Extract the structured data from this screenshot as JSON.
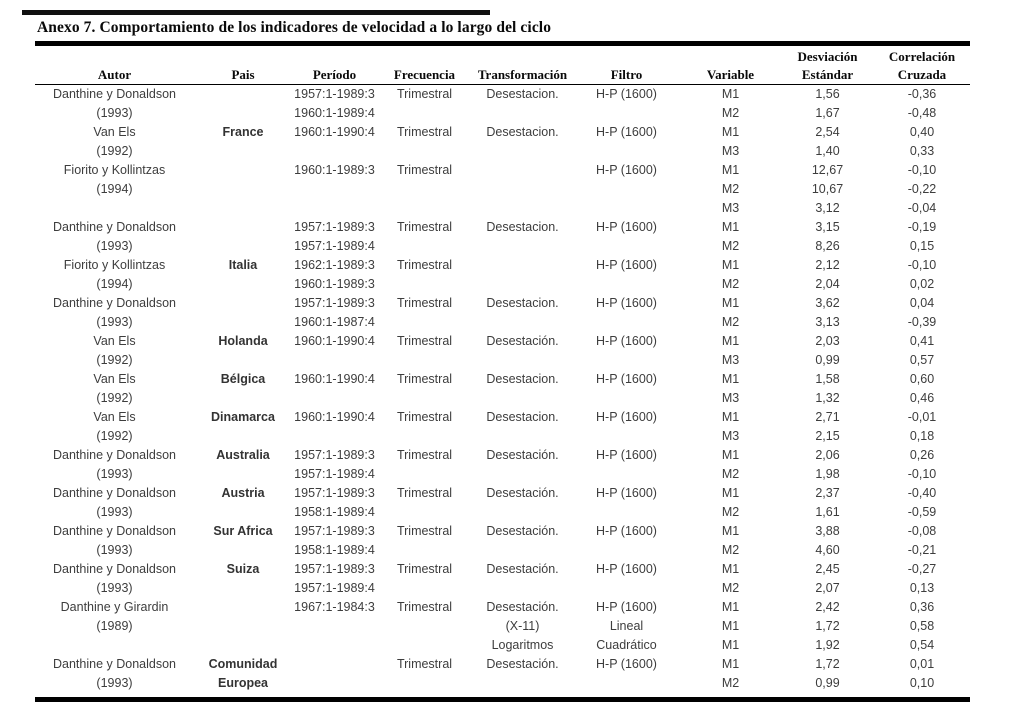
{
  "title": "Anexo 7. Comportamiento de los indicadores de velocidad a lo largo del ciclo",
  "colors": {
    "rule": "#000000",
    "title_text": "#0a0a0a",
    "body_text": "#3d3d3d",
    "background": "#ffffff"
  },
  "table": {
    "header_top": [
      "",
      "",
      "",
      "",
      "",
      "",
      "",
      "Desviación",
      "Correlación"
    ],
    "columns": [
      "Autor",
      "Pais",
      "Período",
      "Frecuencia",
      "Transformación",
      "Filtro",
      "Variable",
      "Estándar",
      "Cruzada"
    ],
    "rows": [
      [
        "Danthine y Donaldson",
        "",
        "1957:1-1989:3",
        "Trimestral",
        "Desestacion.",
        "H-P (1600)",
        "M1",
        "1,56",
        "-0,36"
      ],
      [
        "(1993)",
        "",
        "1960:1-1989:4",
        "",
        "",
        "",
        "M2",
        "1,67",
        "-0,48"
      ],
      [
        "Van Els",
        "France",
        "1960:1-1990:4",
        "Trimestral",
        "Desestacion.",
        "H-P (1600)",
        "M1",
        "2,54",
        "0,40"
      ],
      [
        "(1992)",
        "",
        "",
        "",
        "",
        "",
        "M3",
        "1,40",
        "0,33"
      ],
      [
        "Fiorito y Kollintzas",
        "",
        "1960:1-1989:3",
        "Trimestral",
        "",
        "H-P (1600)",
        "M1",
        "12,67",
        "-0,10"
      ],
      [
        "(1994)",
        "",
        "",
        "",
        "",
        "",
        "M2",
        "10,67",
        "-0,22"
      ],
      [
        "",
        "",
        "",
        "",
        "",
        "",
        "M3",
        "3,12",
        "-0,04"
      ],
      [
        "Danthine y Donaldson",
        "",
        "1957:1-1989:3",
        "Trimestral",
        "Desestacion.",
        "H-P (1600)",
        "M1",
        "3,15",
        "-0,19"
      ],
      [
        "(1993)",
        "",
        "1957:1-1989:4",
        "",
        "",
        "",
        "M2",
        "8,26",
        "0,15"
      ],
      [
        "Fiorito y Kollintzas",
        "Italia",
        "1962:1-1989:3",
        "Trimestral",
        "",
        "H-P (1600)",
        "M1",
        "2,12",
        "-0,10"
      ],
      [
        "(1994)",
        "",
        "1960:1-1989:3",
        "",
        "",
        "",
        "M2",
        "2,04",
        "0,02"
      ],
      [
        "Danthine y Donaldson",
        "",
        "1957:1-1989:3",
        "Trimestral",
        "Desestacion.",
        "H-P (1600)",
        "M1",
        "3,62",
        "0,04"
      ],
      [
        "(1993)",
        "",
        "1960:1-1987:4",
        "",
        "",
        "",
        "M2",
        "3,13",
        "-0,39"
      ],
      [
        "Van Els",
        "Holanda",
        "1960:1-1990:4",
        "Trimestral",
        "Desestación.",
        "H-P (1600)",
        "M1",
        "2,03",
        "0,41"
      ],
      [
        "(1992)",
        "",
        "",
        "",
        "",
        "",
        "M3",
        "0,99",
        "0,57"
      ],
      [
        "Van Els",
        "Bélgica",
        "1960:1-1990:4",
        "Trimestral",
        "Desestacion.",
        "H-P (1600)",
        "M1",
        "1,58",
        "0,60"
      ],
      [
        "(1992)",
        "",
        "",
        "",
        "",
        "",
        "M3",
        "1,32",
        "0,46"
      ],
      [
        "Van Els",
        "Dinamarca",
        "1960:1-1990:4",
        "Trimestral",
        "Desestacion.",
        "H-P (1600)",
        "M1",
        "2,71",
        "-0,01"
      ],
      [
        "(1992)",
        "",
        "",
        "",
        "",
        "",
        "M3",
        "2,15",
        "0,18"
      ],
      [
        "Danthine y Donaldson",
        "Australia",
        "1957:1-1989:3",
        "Trimestral",
        "Desestación.",
        "H-P (1600)",
        "M1",
        "2,06",
        "0,26"
      ],
      [
        "(1993)",
        "",
        "1957:1-1989:4",
        "",
        "",
        "",
        "M2",
        "1,98",
        "-0,10"
      ],
      [
        "Danthine y Donaldson",
        "Austria",
        "1957:1-1989:3",
        "Trimestral",
        "Desestación.",
        "H-P (1600)",
        "M1",
        "2,37",
        "-0,40"
      ],
      [
        "(1993)",
        "",
        "1958:1-1989:4",
        "",
        "",
        "",
        "M2",
        "1,61",
        "-0,59"
      ],
      [
        "Danthine y Donaldson",
        "Sur Africa",
        "1957:1-1989:3",
        "Trimestral",
        "Desestación.",
        "H-P (1600)",
        "M1",
        "3,88",
        "-0,08"
      ],
      [
        "(1993)",
        "",
        "1958:1-1989:4",
        "",
        "",
        "",
        "M2",
        "4,60",
        "-0,21"
      ],
      [
        "Danthine y Donaldson",
        "Suiza",
        "1957:1-1989:3",
        "Trimestral",
        "Desestación.",
        "H-P (1600)",
        "M1",
        "2,45",
        "-0,27"
      ],
      [
        "(1993)",
        "",
        "1957:1-1989:4",
        "",
        "",
        "",
        "M2",
        "2,07",
        "0,13"
      ],
      [
        "Danthine y Girardin",
        "",
        "1967:1-1984:3",
        "Trimestral",
        "Desestación.",
        "H-P (1600)",
        "M1",
        "2,42",
        "0,36"
      ],
      [
        "(1989)",
        "",
        "",
        "",
        "(X-11)",
        "Lineal",
        "M1",
        "1,72",
        "0,58"
      ],
      [
        "",
        "",
        "",
        "",
        "Logaritmos",
        "Cuadrático",
        "M1",
        "1,92",
        "0,54"
      ],
      [
        "Danthine y Donaldson",
        "Comunidad",
        "",
        "Trimestral",
        "Desestación.",
        "H-P (1600)",
        "M1",
        "1,72",
        "0,01"
      ],
      [
        "(1993)",
        "Europea",
        "",
        "",
        "",
        "",
        "M2",
        "0,99",
        "0,10"
      ]
    ]
  }
}
